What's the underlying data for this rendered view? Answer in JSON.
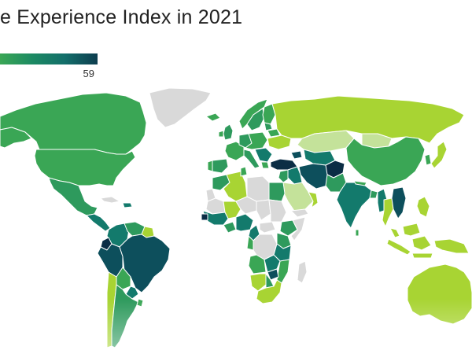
{
  "title": "e Experience Index in 2021",
  "subtitle_fragment": "",
  "legend": {
    "max_label": "59",
    "colors": [
      "#3aa655",
      "#1c8a63",
      "#136e6a",
      "#0d3d4f"
    ]
  },
  "map": {
    "colors": {
      "no_data": "#d9d9d9",
      "ocean": "#ffffff",
      "lime": "#a8d433",
      "light_lime": "#c4e29a",
      "green": "#3aa655",
      "mid_green": "#2e9a5d",
      "teal": "#137a6c",
      "dark_teal": "#0d4f5c",
      "navy": "#0b2d45"
    }
  }
}
